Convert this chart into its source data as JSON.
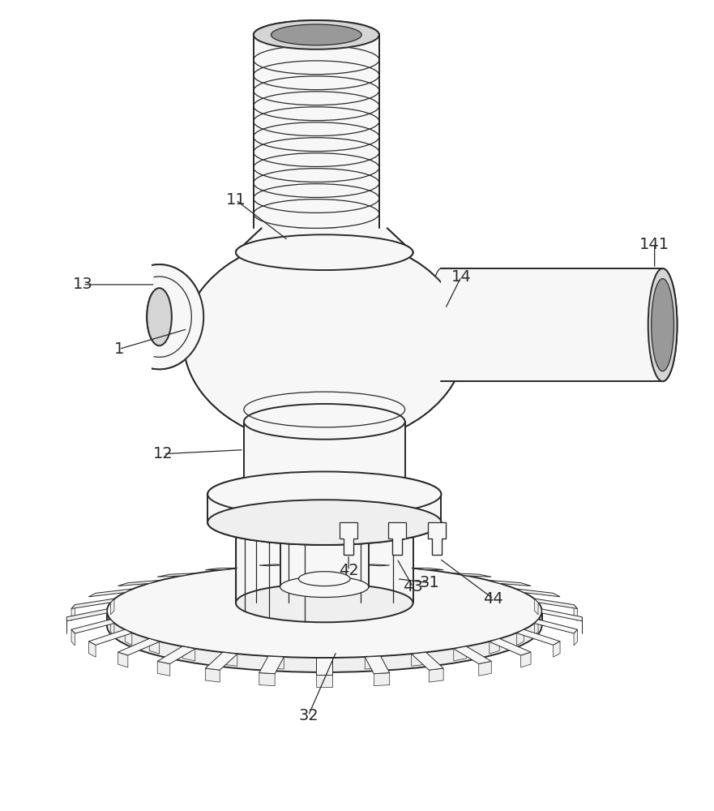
{
  "bg_color": "#ffffff",
  "lc": "#2a2a2a",
  "fill_white": "#ffffff",
  "fill_light": "#efefef",
  "fill_lighter": "#f7f7f7",
  "fill_mid": "#d5d5d5",
  "fill_dark": "#bbbbbb",
  "fill_darkest": "#999999",
  "lw_main": 1.4,
  "lw_thin": 0.9,
  "lw_thick": 1.8,
  "fig_w": 8.81,
  "fig_h": 10.0,
  "dpi": 100
}
